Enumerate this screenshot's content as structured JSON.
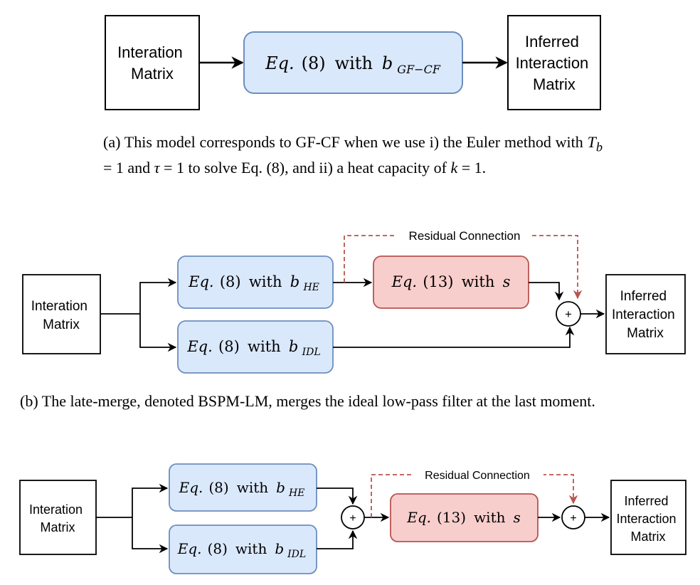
{
  "diagram_a": {
    "input_lines": [
      "Interation",
      "Matrix"
    ],
    "block": {
      "prefix": "Eq.",
      "eq": "(8)",
      "with": "with",
      "var": "b",
      "sub": "GF−CF"
    },
    "output_lines": [
      "Inferred",
      "Interaction",
      "Matrix"
    ],
    "caption_parts": {
      "p1": "(a)  This model corresponds to GF-CF when we use i) the Euler method with ",
      "T": "T",
      "Tsub": "b",
      "p2": " = 1 and ",
      "tau": "τ",
      "p3": " = 1 to solve Eq. (8), and ii) a heat capacity of ",
      "k": "k",
      "p4": " = 1."
    }
  },
  "diagram_b": {
    "input_lines": [
      "Interation",
      "Matrix"
    ],
    "block_he": {
      "prefix": "Eq.",
      "eq": "(8)",
      "with": "with",
      "var": "b",
      "sub": "HE"
    },
    "block_idl": {
      "prefix": "Eq.",
      "eq": "(8)",
      "with": "with",
      "var": "b",
      "sub": "IDL"
    },
    "block_13": {
      "prefix": "Eq.",
      "eq": "(13)",
      "with": "with",
      "var": "s"
    },
    "residual_label": "Residual Connection",
    "plus": "+",
    "output_lines": [
      "Inferred",
      "Interaction",
      "Matrix"
    ],
    "caption": "(b)  The late-merge, denoted BSPM-LM, merges the ideal low-pass filter at the last moment."
  },
  "diagram_c": {
    "input_lines": [
      "Interation",
      "Matrix"
    ],
    "block_he": {
      "prefix": "Eq.",
      "eq": "(8)",
      "with": "with",
      "var": "b",
      "sub": "HE"
    },
    "block_idl": {
      "prefix": "Eq.",
      "eq": "(8)",
      "with": "with",
      "var": "b",
      "sub": "IDL"
    },
    "block_13": {
      "prefix": "Eq.",
      "eq": "(13)",
      "with": "with",
      "var": "s"
    },
    "residual_label": "Residual Connection",
    "plus": "+",
    "output_lines": [
      "Inferred",
      "Interaction",
      "Matrix"
    ]
  },
  "colors": {
    "blue_fill": "#dae8fc",
    "blue_stroke": "#6c8ebf",
    "red_fill": "#f8cecc",
    "red_stroke": "#b85450",
    "residual": "#b85450"
  }
}
